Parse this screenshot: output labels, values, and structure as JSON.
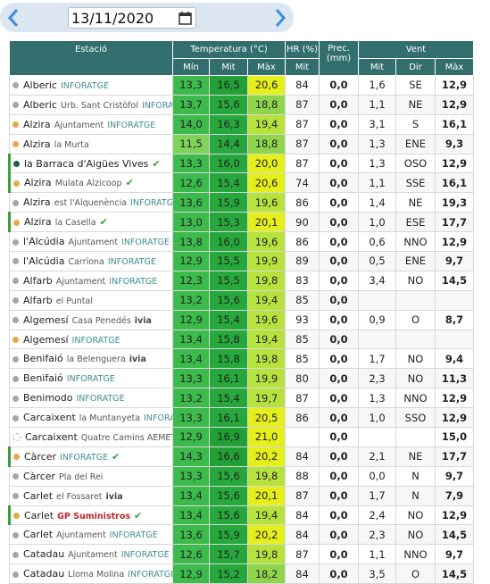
{
  "date_picker": {
    "value": "13/11/2020"
  },
  "table": {
    "headers": {
      "station": "Estació",
      "temperature": "Temperatura (°C)",
      "humidity": "HR (%)",
      "precipitation": "Prec. (mm)",
      "wind": "Vent"
    },
    "subheaders": [
      "Mín",
      "Mit",
      "Màx",
      "Mit",
      "Mit",
      "Dir",
      "Màx"
    ],
    "rows": [
      {
        "station": "Alberic",
        "source": "INFORATGE",
        "dot": "#a6a6a6",
        "cells": [
          "13,3",
          "16,5",
          "20,6",
          "84",
          "0,0",
          "1,6",
          "SE",
          "12,9"
        ]
      },
      {
        "station": "Alberic",
        "place": "Urb. Sant Cristòfol",
        "source": "INFORATGE",
        "dot": "#a6a6a6",
        "cells": [
          "13,7",
          "15,6",
          "18,8",
          "87",
          "0,0",
          "1,1",
          "NE",
          "12,9"
        ]
      },
      {
        "station": "Alzira",
        "place": "Ajuntament",
        "source": "INFORATGE",
        "dot": "#e6a94a",
        "cells": [
          "14,0",
          "16,3",
          "19,4",
          "87",
          "0,0",
          "3,1",
          "S",
          "16,1"
        ]
      },
      {
        "station": "Alzira",
        "place": "la Murta",
        "dot": "#e6a94a",
        "cells": [
          "11,5",
          "14,4",
          "18,8",
          "87",
          "0,0",
          "1,3",
          "ENE",
          "9,3"
        ]
      },
      {
        "station": "la Barraca d'Aigües Vives",
        "dot": "#1f5e4a",
        "check": true,
        "cells": [
          "13,3",
          "16,0",
          "20,0",
          "87",
          "0,0",
          "1,3",
          "OSO",
          "12,9"
        ]
      },
      {
        "station": "Alzira",
        "place": "Mulata Alzicoop",
        "dot": "#e6a94a",
        "check": true,
        "cells": [
          "12,6",
          "15,4",
          "20,6",
          "74",
          "0,0",
          "1,1",
          "SSE",
          "16,1"
        ]
      },
      {
        "station": "Alzira",
        "place": "est l'Alquenència",
        "source": "INFORATGE",
        "dot": "#a6a6a6",
        "cells": [
          "13,6",
          "15,9",
          "19,6",
          "86",
          "0,0",
          "1,4",
          "NE",
          "19,3"
        ]
      },
      {
        "station": "Alzira",
        "place": "la Casella",
        "dot": "#e6a94a",
        "check": true,
        "cells": [
          "13,0",
          "15,3",
          "20,1",
          "90",
          "0,0",
          "1,0",
          "ESE",
          "17,7"
        ]
      },
      {
        "station": "l'Alcúdia",
        "place": "Ajuntament",
        "source": "INFORATGE",
        "dot": "#a6a6a6",
        "cells": [
          "13,8",
          "16,0",
          "19,6",
          "86",
          "0,0",
          "0,6",
          "NNO",
          "12,9"
        ]
      },
      {
        "station": "l'Alcúdia",
        "place": "Carrïona",
        "source": "INFORATGE",
        "dot": "#a6a6a6",
        "cells": [
          "12,9",
          "15,5",
          "19,9",
          "89",
          "0,0",
          "0,5",
          "ENE",
          "9,7"
        ]
      },
      {
        "station": "Alfarb",
        "place": "Ajuntament",
        "source": "INFORATGE",
        "dot": "#a6a6a6",
        "cells": [
          "12,3",
          "15,5",
          "19,8",
          "83",
          "0,0",
          "3,4",
          "NO",
          "14,5"
        ]
      },
      {
        "station": "Alfarb",
        "place": "el Puntal",
        "dot": "#a6a6a6",
        "cells": [
          "13,2",
          "15,6",
          "19,4",
          "85",
          "0,0",
          null,
          null,
          null
        ]
      },
      {
        "station": "Algemesí",
        "place": "Casa Penedés",
        "source": "ivia",
        "dot": "#a6a6a6",
        "cells": [
          "12,9",
          "15,4",
          "19,6",
          "93",
          "0,0",
          "0,9",
          "O",
          "8,7"
        ]
      },
      {
        "station": "Algemesí",
        "source": "INFORATGE",
        "dot": "#e6a94a",
        "cells": [
          "13,4",
          "15,8",
          "19,4",
          "85",
          "0,0",
          null,
          null,
          null
        ]
      },
      {
        "station": "Benifaió",
        "place": "la Belenguera",
        "source": "ivia",
        "dot": "#a6a6a6",
        "cells": [
          "13,4",
          "15,8",
          "19,8",
          "85",
          "0,0",
          "1,7",
          "NO",
          "9,4"
        ]
      },
      {
        "station": "Benifaió",
        "source": "INFORATGE",
        "dot": "#a6a6a6",
        "cells": [
          "13,3",
          "16,1",
          "19,9",
          "80",
          "0,0",
          "2,3",
          "NO",
          "11,3"
        ]
      },
      {
        "station": "Benimodo",
        "source": "INFORATGE",
        "dot": "#a6a6a6",
        "cells": [
          "13,2",
          "15,4",
          "19,7",
          "87",
          "0,0",
          "1,3",
          "NNO",
          "12,9"
        ]
      },
      {
        "station": "Carcaixent",
        "place": "la Muntanyeta",
        "source": "INFORATGE",
        "dot": "#a6a6a6",
        "cells": [
          "13,3",
          "16,1",
          "20,5",
          "86",
          "0,0",
          "1,0",
          "SSO",
          "12,9"
        ]
      },
      {
        "station": "Carcaixent",
        "place": "Quatre Camins AEMET",
        "dot": "#ffffff",
        "cells": [
          "12,9",
          "16,9",
          "21,0",
          null,
          "0,0",
          null,
          null,
          "15,0"
        ]
      },
      {
        "station": "Càrcer",
        "source": "INFORATGE",
        "dot": "#e6a94a",
        "check": true,
        "cells": [
          "14,3",
          "16,6",
          "20,2",
          "84",
          "0,0",
          "2,1",
          "NE",
          "17,7"
        ]
      },
      {
        "station": "Càrcer",
        "place": "Pla del Rei",
        "dot": "#a6a6a6",
        "cells": [
          "13,3",
          "15,6",
          "19,8",
          "88",
          "0,0",
          "0,0",
          "N",
          "9,7"
        ]
      },
      {
        "station": "Carlet",
        "place": "el Fossaret",
        "source": "ivia",
        "dot": "#a6a6a6",
        "cells": [
          "13,4",
          "15,6",
          "20,1",
          "87",
          "0,0",
          "1,7",
          "N",
          "7,9"
        ]
      },
      {
        "station": "Carlet",
        "source": "GP Suministros",
        "dot": "#e6a94a",
        "check": true,
        "cells": [
          "13,4",
          "15,6",
          "19,4",
          "84",
          "0,0",
          "2,4",
          "NO",
          "12,9"
        ]
      },
      {
        "station": "Carlet",
        "place": "Ajuntament",
        "source": "INFORATGE",
        "dot": "#a6a6a6",
        "cells": [
          "13,6",
          "15,9",
          "20,2",
          "84",
          "0,0",
          "2,3",
          "NO",
          "14,5"
        ]
      },
      {
        "station": "Catadau",
        "place": "Ajuntament",
        "source": "INFORATGE",
        "dot": "#a6a6a6",
        "cells": [
          "12,6",
          "15,7",
          "19,8",
          "87",
          "0,0",
          "1,1",
          "NNO",
          "9,7"
        ]
      },
      {
        "station": "Catadau",
        "place": "Lloma Molina",
        "source": "INFORATGE",
        "dot": "#a6a6a6",
        "cells": [
          "12,9",
          "15,2",
          "18,2",
          "84",
          "0,0",
          "3,5",
          "O",
          "14,5"
        ]
      }
    ]
  }
}
